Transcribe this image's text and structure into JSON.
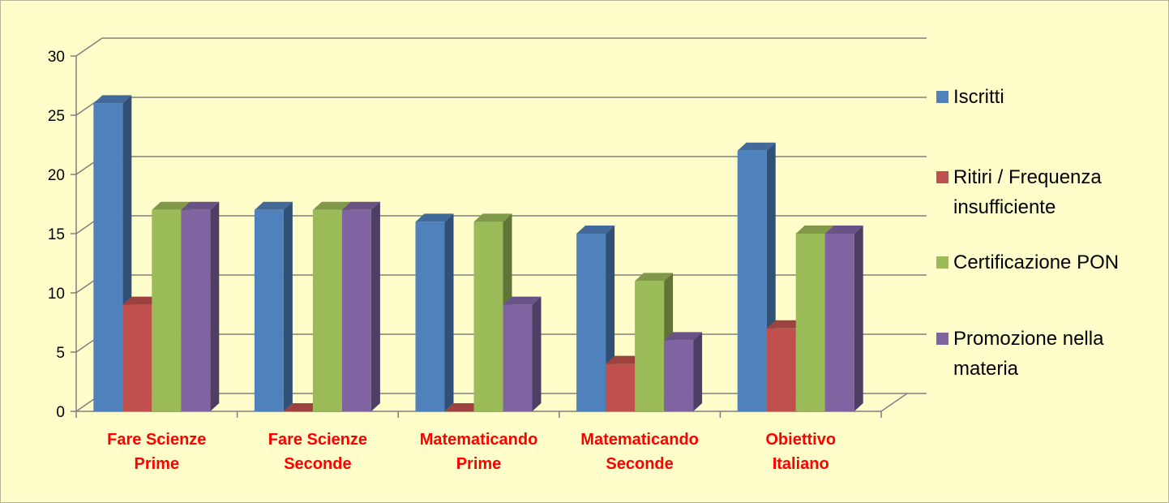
{
  "chart_data": {
    "type": "bar",
    "categories": [
      [
        "Fare Scienze",
        "Prime"
      ],
      [
        "Fare Scienze",
        "Seconde"
      ],
      [
        "Matematicando",
        "Prime"
      ],
      [
        "Matematicando",
        "Seconde"
      ],
      [
        "Obiettivo",
        "Italiano"
      ]
    ],
    "series": [
      {
        "name": "Iscritti",
        "values": [
          26,
          17,
          16,
          15,
          22
        ],
        "color": "#4f81bd"
      },
      {
        "name": [
          "Ritiri / Frequenza",
          "insufficiente"
        ],
        "values": [
          9,
          0,
          0,
          4,
          7
        ],
        "color": "#c0504d"
      },
      {
        "name": "Certificazione PON",
        "values": [
          17,
          17,
          16,
          11,
          15
        ],
        "color": "#9bbb59"
      },
      {
        "name": [
          "Promozione nella",
          "materia"
        ],
        "values": [
          17,
          17,
          9,
          6,
          15
        ],
        "color": "#8064a2"
      }
    ],
    "ylim": [
      0,
      30
    ],
    "yticks": [
      0,
      5,
      10,
      15,
      20,
      25,
      30
    ],
    "grid": true,
    "legend_position": "right",
    "category_label_color": "#ff0000"
  }
}
